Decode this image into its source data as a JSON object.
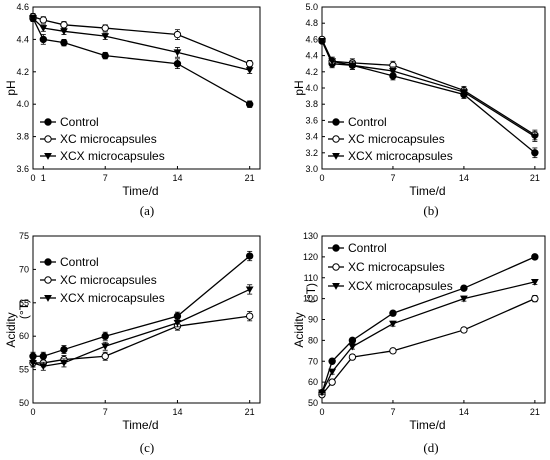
{
  "chart_data": [
    {
      "type": "line",
      "panel": "(a)",
      "xlabel": "Time/d",
      "ylabel": "pH",
      "xlim": [
        0,
        22
      ],
      "ylim": [
        3.6,
        4.6
      ],
      "xticks": [
        0,
        1,
        7,
        14,
        21
      ],
      "yticks": [
        3.6,
        3.8,
        4.0,
        4.2,
        4.4,
        4.6
      ],
      "ytick_labels": [
        "3.6",
        "3.8",
        "4.0",
        "4.2",
        "4.4",
        "4.6"
      ],
      "legend_position": "bottom-left",
      "x": [
        0,
        1,
        3,
        7,
        14,
        21
      ],
      "series": [
        {
          "name": "Control",
          "marker": "filled-circle",
          "values": [
            4.53,
            4.4,
            4.38,
            4.3,
            4.25,
            4.0
          ],
          "errors": [
            0.02,
            0.03,
            0.02,
            0.02,
            0.03,
            0.02
          ]
        },
        {
          "name": "XC microcapsules",
          "marker": "open-circle",
          "values": [
            4.54,
            4.52,
            4.49,
            4.47,
            4.43,
            4.25
          ],
          "errors": [
            0.02,
            0.02,
            0.02,
            0.02,
            0.03,
            0.02
          ]
        },
        {
          "name": "XCX microcapsules",
          "marker": "filled-triangle",
          "values": [
            4.53,
            4.47,
            4.45,
            4.42,
            4.32,
            4.21
          ],
          "errors": [
            0.02,
            0.02,
            0.02,
            0.02,
            0.03,
            0.02
          ]
        }
      ]
    },
    {
      "type": "line",
      "panel": "(b)",
      "xlabel": "Time/d",
      "ylabel": "pH",
      "xlim": [
        0,
        22
      ],
      "ylim": [
        3.0,
        5.0
      ],
      "xticks": [
        0,
        7,
        14,
        21
      ],
      "yticks": [
        3.0,
        3.2,
        3.4,
        3.6,
        3.8,
        4.0,
        4.2,
        4.4,
        4.6,
        4.8,
        5.0
      ],
      "ytick_labels": [
        "3.0",
        "3.2",
        "3.4",
        "3.6",
        "3.8",
        "4.0",
        "4.2",
        "4.4",
        "4.6",
        "4.8",
        "5.0"
      ],
      "legend_position": "bottom-left",
      "x": [
        0,
        1,
        3,
        7,
        14,
        21
      ],
      "series": [
        {
          "name": "Control",
          "marker": "filled-circle",
          "values": [
            4.58,
            4.3,
            4.28,
            4.15,
            3.92,
            3.2
          ],
          "errors": [
            0.03,
            0.05,
            0.05,
            0.05,
            0.05,
            0.06
          ]
        },
        {
          "name": "XC microcapsules",
          "marker": "open-circle",
          "values": [
            4.6,
            4.33,
            4.31,
            4.28,
            3.97,
            3.42
          ],
          "errors": [
            0.03,
            0.05,
            0.05,
            0.05,
            0.05,
            0.06
          ]
        },
        {
          "name": "XCX microcapsules",
          "marker": "filled-triangle",
          "values": [
            4.58,
            4.33,
            4.28,
            4.21,
            3.95,
            3.4
          ],
          "errors": [
            0.03,
            0.05,
            0.05,
            0.05,
            0.05,
            0.06
          ]
        }
      ]
    },
    {
      "type": "line",
      "panel": "(c)",
      "xlabel": "Time/d",
      "ylabel": "Acidity",
      "ylabel_unit": "(°T)",
      "xlim": [
        0,
        22
      ],
      "ylim": [
        50,
        75
      ],
      "xticks": [
        0,
        7,
        14,
        21
      ],
      "yticks": [
        50,
        55,
        60,
        65,
        70,
        75
      ],
      "ytick_labels": [
        "50",
        "55",
        "60",
        "65",
        "70",
        "75"
      ],
      "legend_position": "top-left",
      "x": [
        0,
        1,
        3,
        7,
        14,
        21
      ],
      "series": [
        {
          "name": "Control",
          "marker": "filled-circle",
          "values": [
            57.0,
            57.0,
            58.0,
            60.0,
            63.0,
            72.0
          ],
          "errors": [
            0.6,
            0.6,
            0.6,
            0.6,
            0.6,
            0.7
          ]
        },
        {
          "name": "XC microcapsules",
          "marker": "open-circle",
          "values": [
            56.0,
            56.0,
            56.5,
            57.0,
            61.5,
            63.0
          ],
          "errors": [
            0.6,
            0.6,
            0.6,
            0.6,
            0.6,
            0.7
          ]
        },
        {
          "name": "XCX microcapsules",
          "marker": "filled-triangle",
          "values": [
            56.0,
            55.5,
            56.0,
            58.5,
            62.0,
            67.0
          ],
          "errors": [
            0.6,
            0.6,
            0.6,
            0.6,
            0.6,
            0.7
          ]
        }
      ]
    },
    {
      "type": "line",
      "panel": "(d)",
      "xlabel": "Time/d",
      "ylabel": "Acidity",
      "ylabel_unit": "(°T)",
      "xlim": [
        0,
        22
      ],
      "ylim": [
        50,
        130
      ],
      "xticks": [
        0,
        7,
        14,
        21
      ],
      "yticks": [
        50,
        60,
        70,
        80,
        90,
        100,
        110,
        120,
        130
      ],
      "ytick_labels": [
        "50",
        "60",
        "70",
        "80",
        "90",
        "100",
        "110",
        "120",
        "130"
      ],
      "legend_position": "top-left",
      "x": [
        0,
        1,
        3,
        7,
        14,
        21
      ],
      "series": [
        {
          "name": "Control",
          "marker": "filled-circle",
          "values": [
            55,
            70,
            80,
            93,
            105,
            120
          ],
          "errors": [
            1.0,
            1.2,
            1.2,
            1.2,
            1.2,
            1.2
          ]
        },
        {
          "name": "XC microcapsules",
          "marker": "open-circle",
          "values": [
            54,
            60,
            72,
            75,
            85,
            100
          ],
          "errors": [
            1.0,
            1.2,
            1.2,
            1.2,
            1.2,
            1.5
          ]
        },
        {
          "name": "XCX microcapsules",
          "marker": "filled-triangle",
          "values": [
            55,
            65,
            77,
            88,
            100,
            108
          ],
          "errors": [
            1.0,
            1.2,
            1.2,
            1.2,
            1.2,
            1.2
          ]
        }
      ]
    }
  ]
}
